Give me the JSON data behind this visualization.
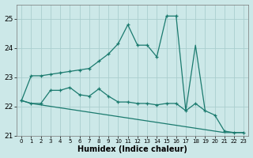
{
  "x": [
    0,
    1,
    2,
    3,
    4,
    5,
    6,
    7,
    8,
    9,
    10,
    11,
    12,
    13,
    14,
    15,
    16,
    17,
    18,
    19,
    20,
    21,
    22,
    23
  ],
  "line1": [
    22.2,
    23.05,
    23.05,
    23.1,
    23.15,
    23.2,
    23.25,
    23.3,
    23.55,
    23.8,
    24.15,
    24.8,
    24.1,
    24.1,
    23.7,
    25.1,
    25.1,
    null,
    null,
    null,
    null,
    null,
    null,
    null
  ],
  "line2": [
    22.2,
    22.1,
    22.1,
    22.55,
    22.55,
    22.65,
    22.4,
    22.35,
    22.6,
    22.35,
    22.15,
    22.15,
    22.1,
    22.1,
    22.05,
    22.1,
    22.1,
    21.85,
    22.1,
    21.85,
    21.7,
    21.15,
    21.1,
    21.1
  ],
  "line3": [
    22.2,
    22.1,
    22.05,
    22.0,
    21.95,
    21.9,
    21.85,
    21.8,
    21.75,
    21.7,
    21.65,
    21.6,
    21.55,
    21.5,
    21.45,
    21.4,
    21.35,
    21.3,
    21.25,
    21.2,
    21.15,
    21.1,
    21.1,
    21.1
  ],
  "line4": [
    null,
    null,
    null,
    null,
    null,
    null,
    null,
    null,
    null,
    null,
    null,
    null,
    null,
    null,
    null,
    null,
    25.1,
    21.85,
    24.1,
    21.85,
    null,
    null,
    null,
    null
  ],
  "color": "#1a7a6e",
  "bg_color": "#cce8e8",
  "grid_color": "#aacece",
  "xlabel": "Humidex (Indice chaleur)",
  "ylim": [
    21.0,
    25.5
  ],
  "yticks": [
    21,
    22,
    23,
    24,
    25
  ],
  "xticks": [
    0,
    1,
    2,
    3,
    4,
    5,
    6,
    7,
    8,
    9,
    10,
    11,
    12,
    13,
    14,
    15,
    16,
    17,
    18,
    19,
    20,
    21,
    22,
    23
  ]
}
